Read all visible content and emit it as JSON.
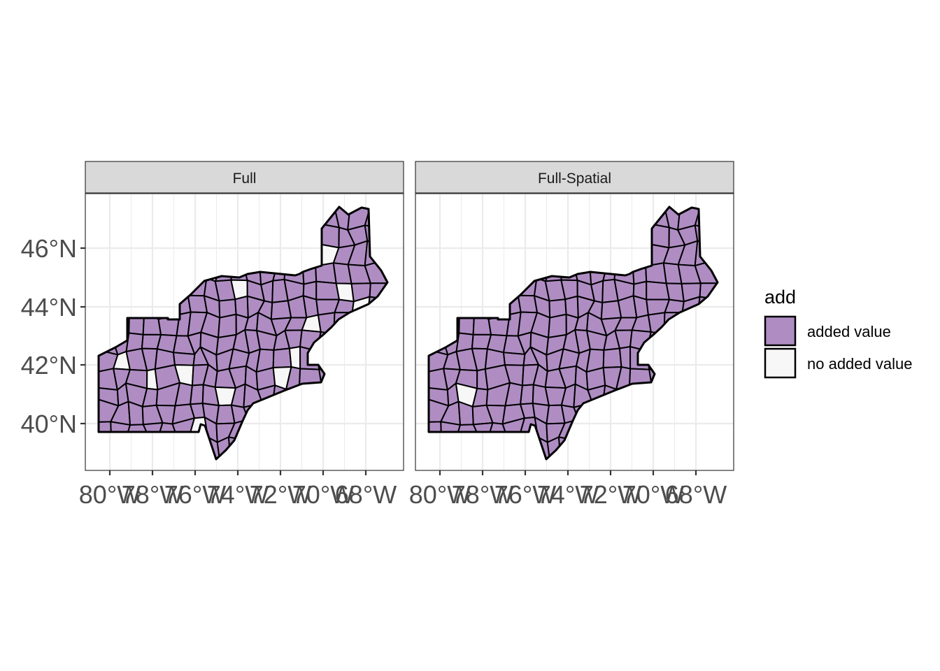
{
  "map": {
    "panels": [
      {
        "title": "Full",
        "highlight_regions": "most"
      },
      {
        "title": "Full-Spatial",
        "highlight_regions": "nearly-all"
      }
    ],
    "lat_ticks": [
      "40°N",
      "42°N",
      "44°N",
      "46°N"
    ],
    "lon_ticks": [
      "80°W",
      "78°W",
      "76°W",
      "74°W",
      "72°W",
      "70°W",
      "68°W"
    ],
    "legend": {
      "title": "add",
      "items": [
        {
          "label": "added value",
          "color": "#AF8DC3"
        },
        {
          "label": "no added value",
          "color": "#F7F7F7"
        }
      ]
    },
    "colors": {
      "added": "#AF8DC3",
      "none": "#F7F7F7",
      "border": "#000000",
      "strip": "#D9D9D9",
      "grid": "#EBEBEB"
    }
  }
}
